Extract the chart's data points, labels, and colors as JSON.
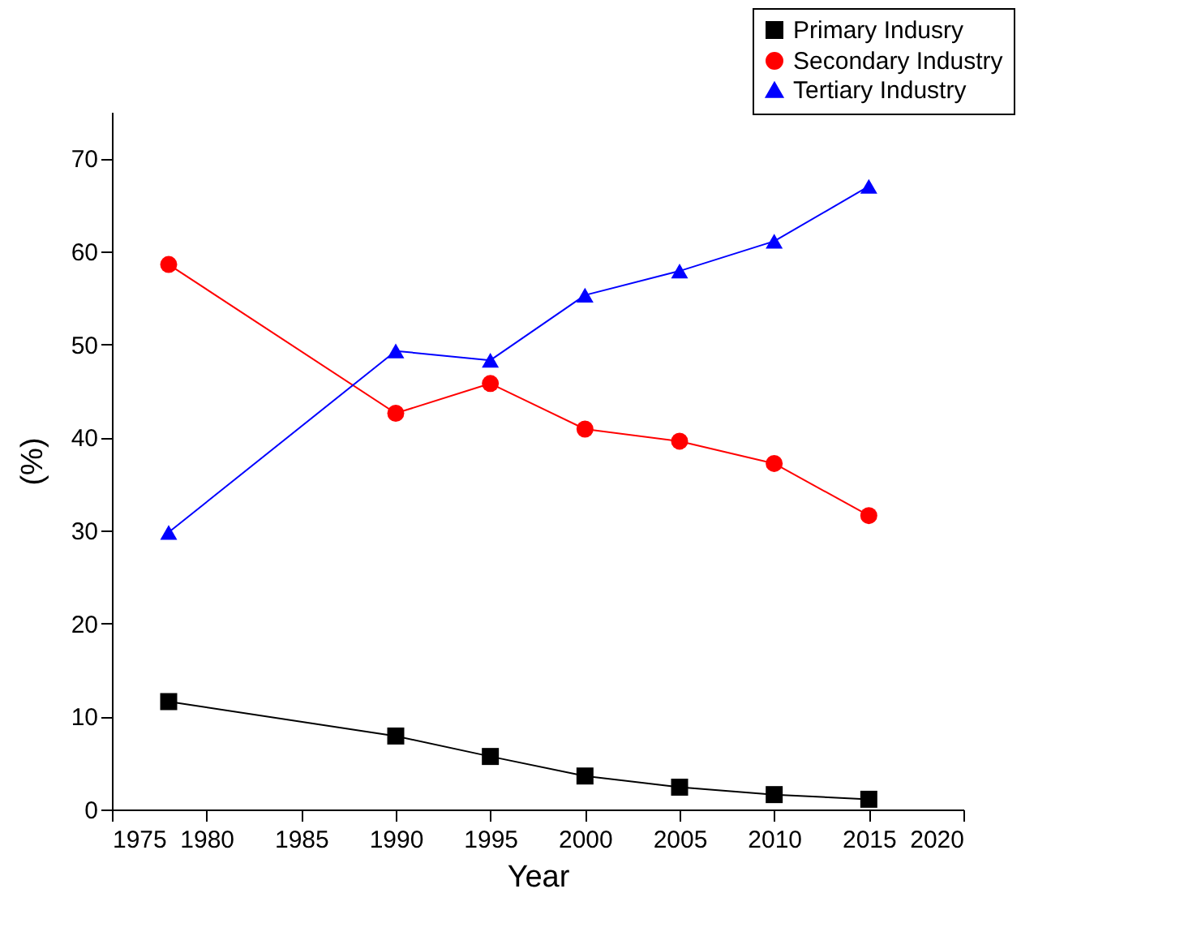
{
  "chart_data": {
    "type": "line",
    "xlabel": "Year",
    "ylabel": "(%)",
    "x": [
      1978,
      1990,
      1995,
      2000,
      2005,
      2010,
      2015
    ],
    "series": [
      {
        "name": "Primary Indusry",
        "color": "#000000",
        "marker": "square",
        "values": [
          11.6,
          7.9,
          5.7,
          3.6,
          2.4,
          1.6,
          1.1
        ]
      },
      {
        "name": "Secondary Industry",
        "color": "#ff0000",
        "marker": "circle",
        "values": [
          58.6,
          42.6,
          45.8,
          40.9,
          39.6,
          37.2,
          31.6
        ]
      },
      {
        "name": "Tertiary Industry",
        "color": "#0000ff",
        "marker": "triangle",
        "values": [
          29.8,
          49.3,
          48.3,
          55.3,
          57.9,
          61.1,
          67.0
        ]
      }
    ],
    "xlim": [
      1975,
      2020
    ],
    "xticks": [
      1975,
      1980,
      1985,
      1990,
      1995,
      2000,
      2005,
      2010,
      2015,
      2020
    ],
    "ylim": [
      0,
      75
    ],
    "yticks": [
      0,
      10,
      20,
      30,
      40,
      50,
      60,
      70
    ],
    "grid": false,
    "legend": "top right",
    "line_style": "solid"
  }
}
